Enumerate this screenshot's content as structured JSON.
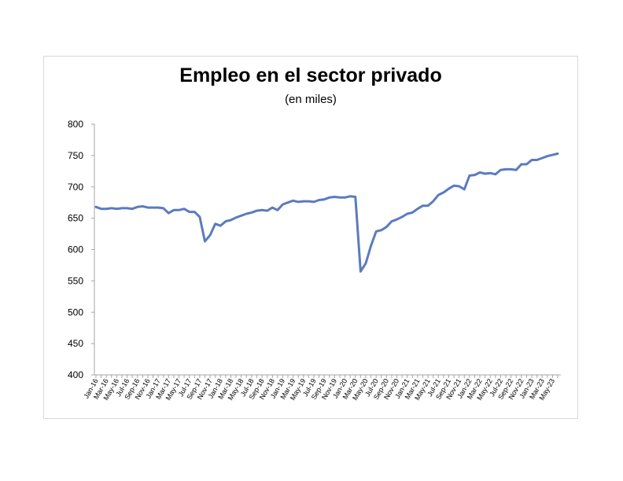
{
  "chart_data": {
    "type": "line",
    "title": "Empleo en el sector privado",
    "subtitle": "(en miles)",
    "xlabel": "",
    "ylabel": "",
    "ylim": [
      400,
      800
    ],
    "yticks": [
      400,
      450,
      500,
      550,
      600,
      650,
      700,
      750,
      800
    ],
    "grid": false,
    "legend": "none",
    "line_color": "#5b7bbf",
    "x_tick_labels": [
      "Jan-16",
      "Mar-16",
      "May-16",
      "Jul-16",
      "Sep-16",
      "Nov-16",
      "Jan-17",
      "Mar-17",
      "May-17",
      "Jul-17",
      "Sep-17",
      "Nov-17",
      "Jan-18",
      "Mar-18",
      "May-18",
      "Jul-18",
      "Sep-18",
      "Nov-18",
      "Jan-19",
      "Mar-19",
      "May-19",
      "Jul-19",
      "Sep-19",
      "Nov-19",
      "Jan-20",
      "Mar-20",
      "May-20",
      "Jul-20",
      "Sep-20",
      "Nov-20",
      "Jan-21",
      "Mar-21",
      "May-21",
      "Jul-21",
      "Sep-21",
      "Nov-21",
      "Jan-22",
      "Mar-22",
      "May-22",
      "Jul-22",
      "Sep-22",
      "Nov-22",
      "Jan-23",
      "Mar-23",
      "May-23"
    ],
    "x": [
      "Jan-16",
      "Feb-16",
      "Mar-16",
      "Apr-16",
      "May-16",
      "Jun-16",
      "Jul-16",
      "Aug-16",
      "Sep-16",
      "Oct-16",
      "Nov-16",
      "Dec-16",
      "Jan-17",
      "Feb-17",
      "Mar-17",
      "Apr-17",
      "May-17",
      "Jun-17",
      "Jul-17",
      "Aug-17",
      "Sep-17",
      "Oct-17",
      "Nov-17",
      "Dec-17",
      "Jan-18",
      "Feb-18",
      "Mar-18",
      "Apr-18",
      "May-18",
      "Jun-18",
      "Jul-18",
      "Aug-18",
      "Sep-18",
      "Oct-18",
      "Nov-18",
      "Dec-18",
      "Jan-19",
      "Feb-19",
      "Mar-19",
      "Apr-19",
      "May-19",
      "Jun-19",
      "Jul-19",
      "Aug-19",
      "Sep-19",
      "Oct-19",
      "Nov-19",
      "Dec-19",
      "Jan-20",
      "Feb-20",
      "Mar-20",
      "Apr-20",
      "May-20",
      "Jun-20",
      "Jul-20",
      "Aug-20",
      "Sep-20",
      "Oct-20",
      "Nov-20",
      "Dec-20",
      "Jan-21",
      "Feb-21",
      "Mar-21",
      "Apr-21",
      "May-21",
      "Jun-21",
      "Jul-21",
      "Aug-21",
      "Sep-21",
      "Oct-21",
      "Nov-21",
      "Dec-21",
      "Jan-22",
      "Feb-22",
      "Mar-22",
      "Apr-22",
      "May-22",
      "Jun-22",
      "Jul-22",
      "Aug-22",
      "Sep-22",
      "Oct-22",
      "Nov-22",
      "Dec-22",
      "Jan-23",
      "Feb-23",
      "Mar-23",
      "Apr-23",
      "May-23",
      "Jun-23"
    ],
    "series": [
      {
        "values": [
          668,
          665,
          665,
          666,
          665,
          666,
          666,
          665,
          668,
          669,
          667,
          667,
          667,
          666,
          658,
          663,
          663,
          665,
          660,
          660,
          652,
          613,
          623,
          641,
          638,
          645,
          647,
          651,
          654,
          657,
          659,
          662,
          663,
          662,
          667,
          663,
          672,
          675,
          678,
          676,
          677,
          677,
          676,
          679,
          680,
          683,
          684,
          683,
          683,
          685,
          684,
          565,
          578,
          606,
          629,
          631,
          636,
          645,
          648,
          652,
          657,
          659,
          665,
          670,
          670,
          677,
          687,
          691,
          697,
          702,
          701,
          696,
          718,
          719,
          723,
          721,
          722,
          720,
          727,
          728,
          728,
          727,
          736,
          736,
          743,
          743,
          746,
          749,
          751,
          753
        ]
      }
    ]
  }
}
